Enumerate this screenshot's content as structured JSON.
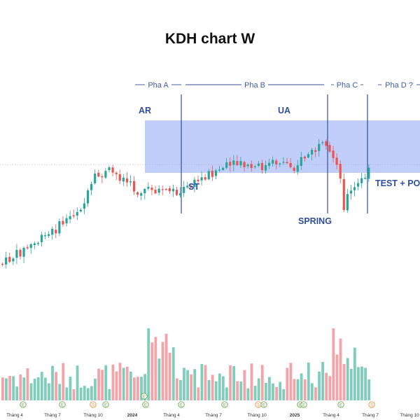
{
  "chart_data": {
    "type": "candlestick",
    "title": "KDH chart W",
    "phases": [
      {
        "label": "Pha A",
        "from": 0,
        "to": 4
      },
      {
        "label": "Pha B",
        "from": 4,
        "to": 27
      },
      {
        "label": "Pha C",
        "from": 27,
        "to": 31
      },
      {
        "label": "Pha D ?",
        "from": 31,
        "to": 36
      }
    ],
    "annotations": [
      {
        "label": "AR",
        "at": 2
      },
      {
        "label": "ST",
        "at": 4
      },
      {
        "label": "UA",
        "at": 17
      },
      {
        "label": "SPRING",
        "at": 29
      },
      {
        "label": "TEST + POB",
        "at": 33
      }
    ],
    "x_ticks": [
      {
        "label": "Tháng 4",
        "bold": false
      },
      {
        "label": "Tháng 7",
        "bold": false
      },
      {
        "label": "Tháng 10",
        "bold": false
      },
      {
        "label": "2024",
        "bold": true
      },
      {
        "label": "Tháng 4",
        "bold": false
      },
      {
        "label": "Tháng 7",
        "bold": false
      },
      {
        "label": "Tháng 10",
        "bold": false
      },
      {
        "label": "2025",
        "bold": true
      },
      {
        "label": "Tháng 4",
        "bold": false
      },
      {
        "label": "Tháng 7",
        "bold": false
      },
      {
        "label": "Tháng 10",
        "bold": false
      }
    ],
    "event_markers": [
      "E",
      "E",
      "S",
      "E",
      "E",
      "E",
      "E",
      "E",
      "S",
      "E",
      "E",
      "E",
      "E",
      "S"
    ],
    "colors": {
      "up": "#26a69a",
      "down": "#ef5350",
      "vol_up": "#7fcdbb",
      "vol_down": "#f4a3a8",
      "range_box": "#8ea6f5",
      "phase_line": "#2f4f9c",
      "marker": "#6aa84f"
    }
  }
}
